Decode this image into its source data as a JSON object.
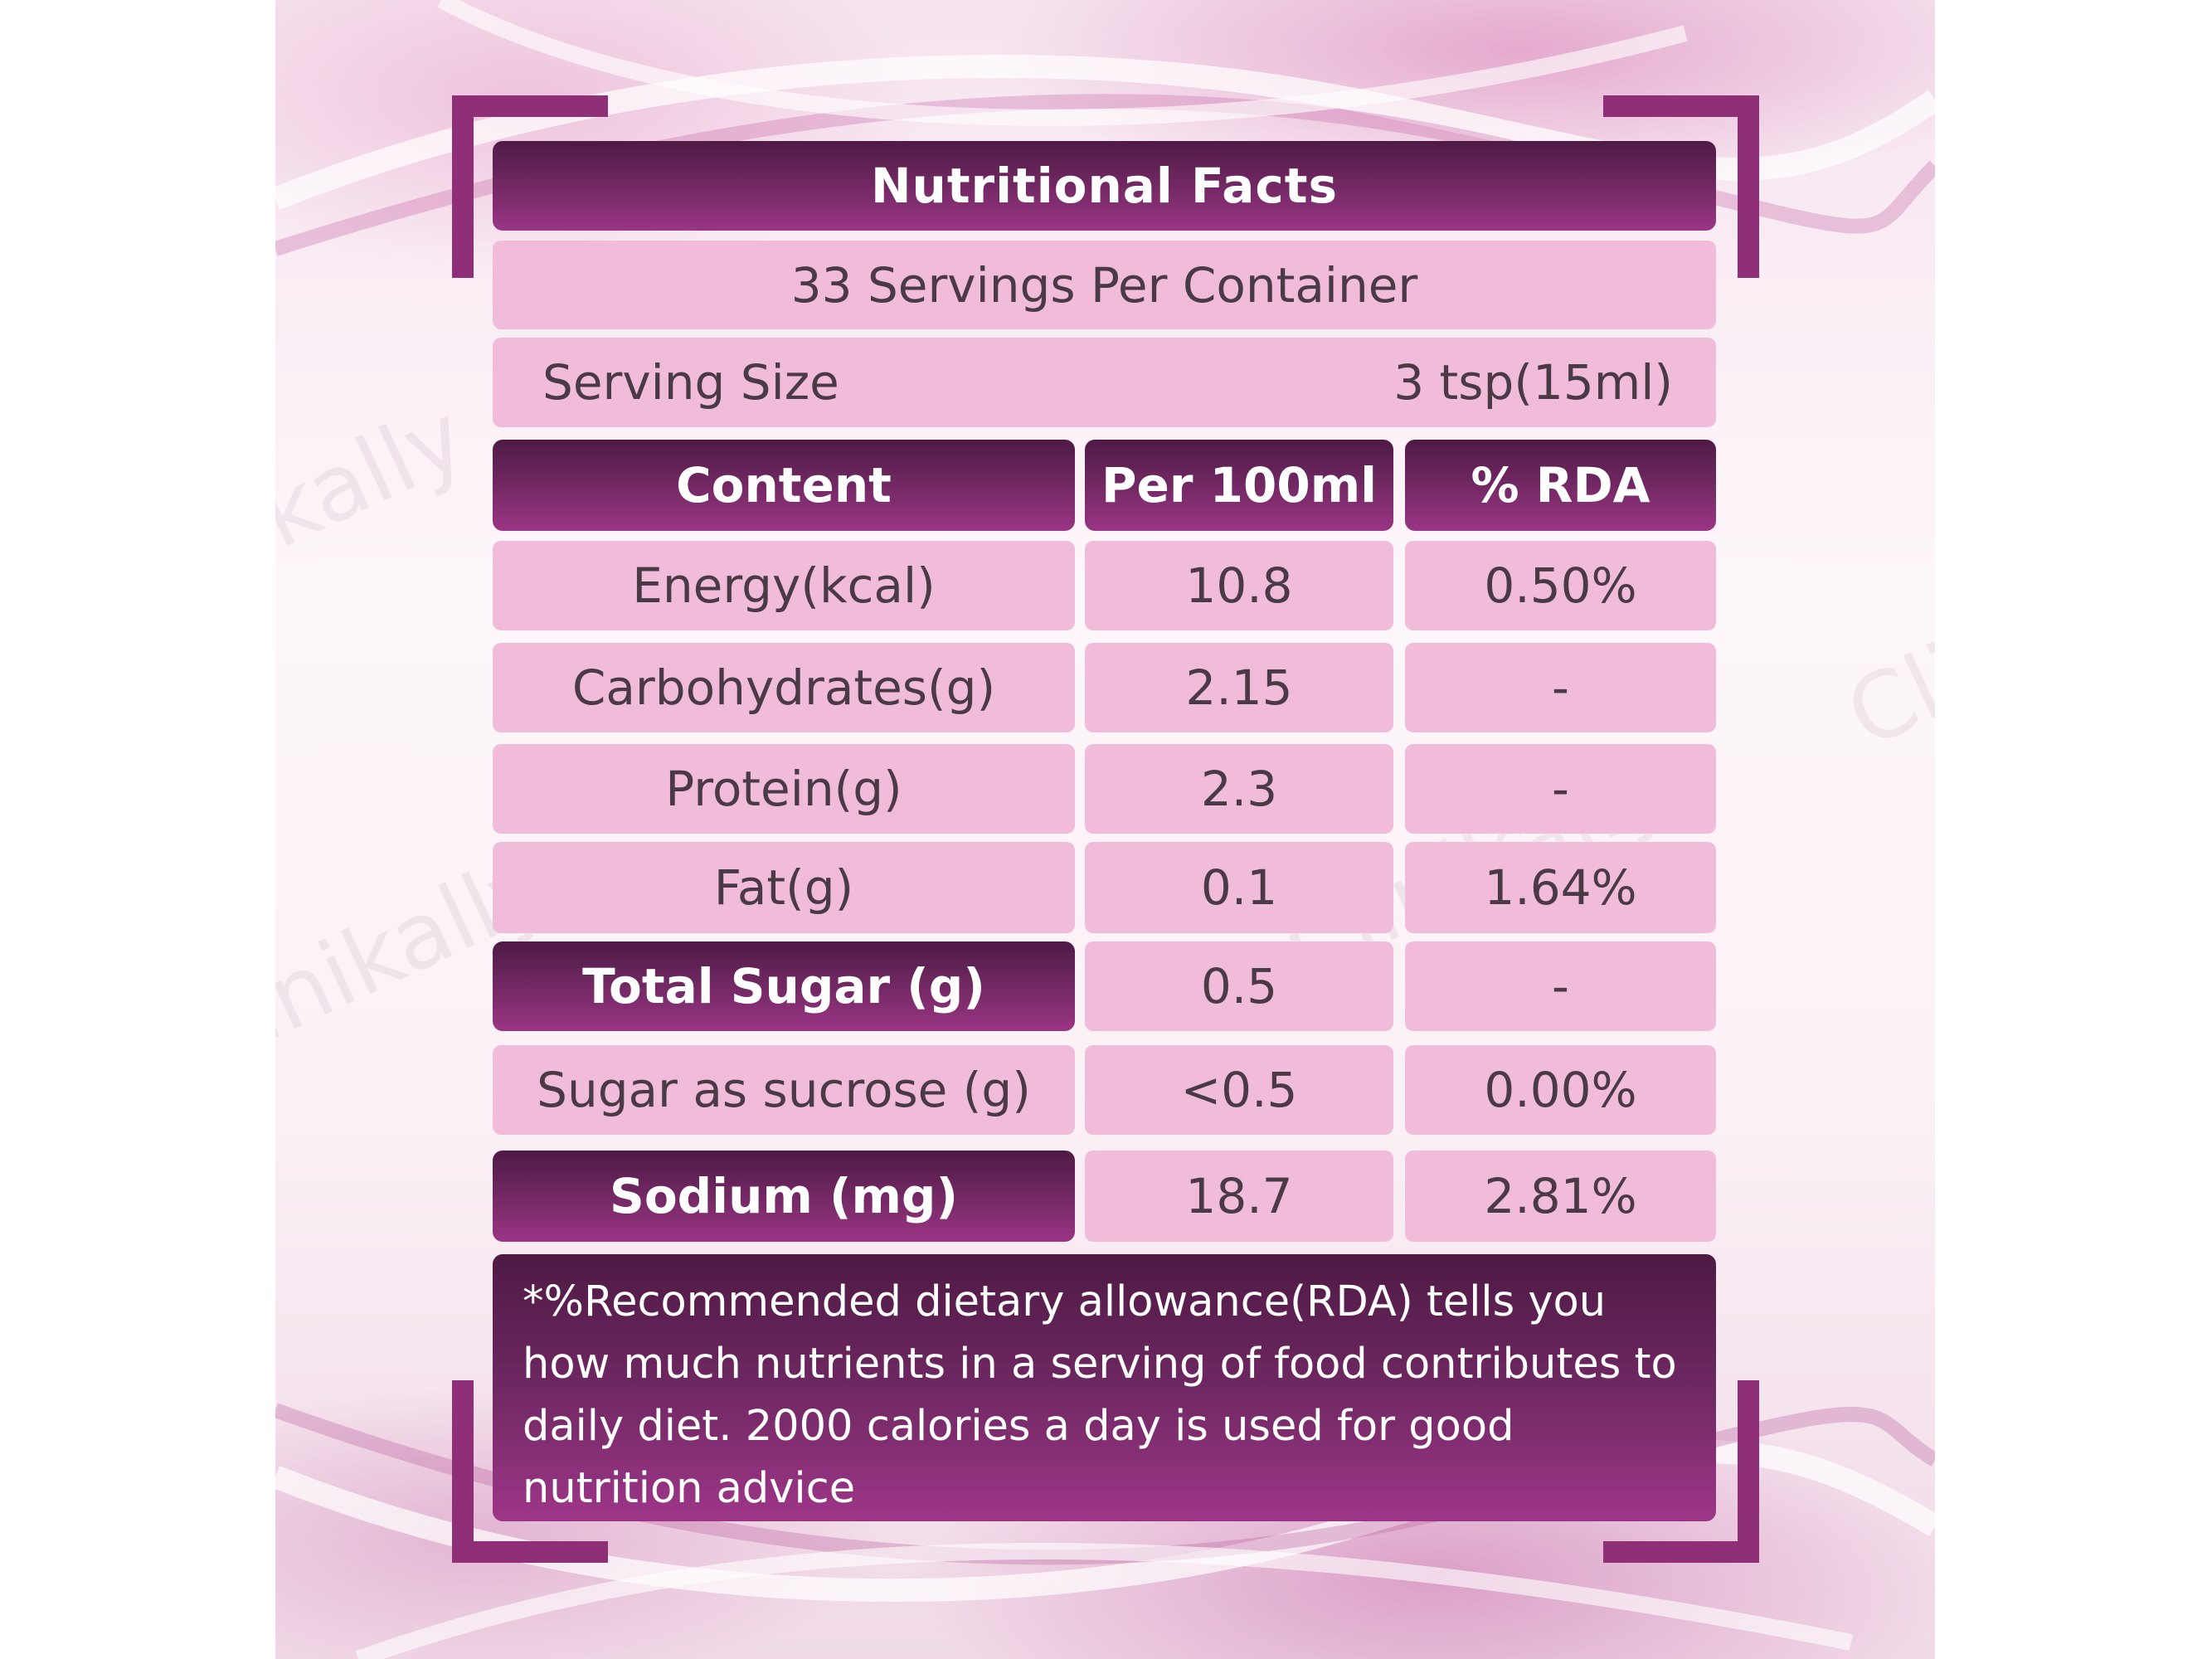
{
  "title": "Nutritional Facts",
  "servings_per_container": "33 Servings Per Container",
  "serving_size": {
    "label": "Serving Size",
    "value": "3 tsp(15ml)"
  },
  "table": {
    "headers": [
      "Content",
      "Per 100ml",
      "% RDA"
    ],
    "rows": [
      {
        "content": "Energy(kcal)",
        "per100": "10.8",
        "rda": "0.50%",
        "highlight": false
      },
      {
        "content": "Carbohydrates(g)",
        "per100": "2.15",
        "rda": "-",
        "highlight": false
      },
      {
        "content": "Protein(g)",
        "per100": "2.3",
        "rda": "-",
        "highlight": false
      },
      {
        "content": "Fat(g)",
        "per100": "0.1",
        "rda": "1.64%",
        "highlight": false
      },
      {
        "content": "Total Sugar (g)",
        "per100": "0.5",
        "rda": "-",
        "highlight": true
      },
      {
        "content": "Sugar as sucrose (g)",
        "per100": "<0.5",
        "rda": "0.00%",
        "highlight": false
      },
      {
        "content": "Sodium (mg)",
        "per100": "18.7",
        "rda": "2.81%",
        "highlight": true
      }
    ]
  },
  "footnote": "*%Recommended dietary allowance(RDA) tells you how much nutrients in a serving of food contributes to daily diet. 2000 calories a day is used for good nutrition advice",
  "watermark": "Clinikally",
  "colors": {
    "dark_purple": "#6e2760",
    "light_pink": "#f1bcd9",
    "bracket": "#8e2f78"
  }
}
